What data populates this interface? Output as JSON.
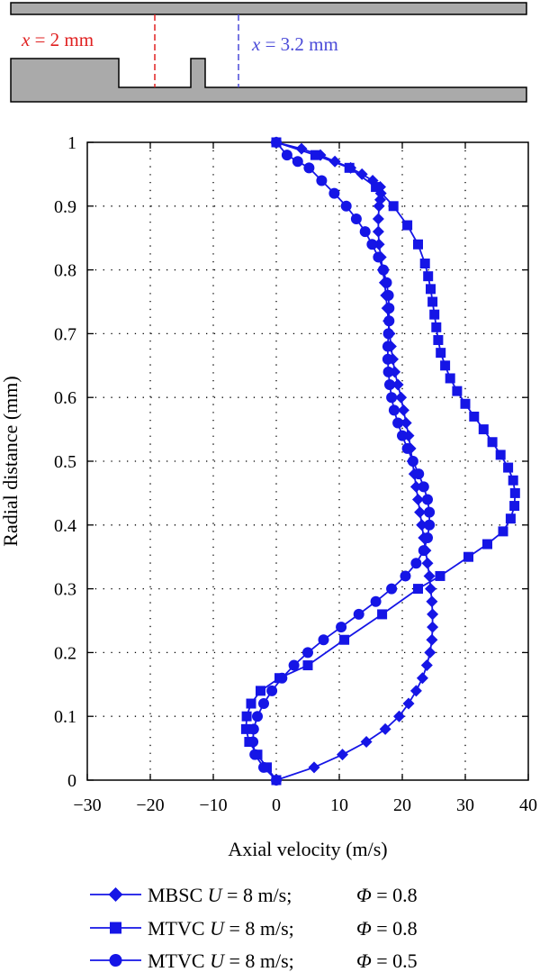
{
  "schematic": {
    "annotations": [
      {
        "var": "x",
        "text": " = 2 mm",
        "color": "#e02020"
      },
      {
        "var": "x",
        "text": " = 3.2 mm",
        "color": "#4a4ad8"
      }
    ]
  },
  "chart_data": {
    "type": "line",
    "xlabel": "Axial velocity (m/s)",
    "ylabel": "Radial distance (mm)",
    "xlim": [
      -30,
      40
    ],
    "ylim": [
      0,
      1
    ],
    "xticks": [
      "−30",
      "−20",
      "−10",
      "0",
      "10",
      "20",
      "30",
      "40"
    ],
    "yticks": [
      "0",
      "0.1",
      "0.2",
      "0.3",
      "0.4",
      "0.5",
      "0.6",
      "0.7",
      "0.8",
      "0.9",
      "1"
    ],
    "grid": true,
    "color": "#1515e6",
    "series": [
      {
        "name": "MBSC U = 8 m/s;    Φ = 0.8",
        "legend": {
          "name": "MBSC",
          "u_sym": "U",
          "u_val": " = 8 m/s;",
          "phi_sym": "Φ",
          "phi_val": " = 0.8"
        },
        "marker": "diamond",
        "x": [
          0,
          6.0,
          10.5,
          14.3,
          17.3,
          19.5,
          21.0,
          22.2,
          23.2,
          23.9,
          24.4,
          24.7,
          24.8,
          24.8,
          24.7,
          24.5,
          24.3,
          24.0,
          23.7,
          23.4,
          23.1,
          22.8,
          22.5,
          22.2,
          21.9,
          21.6,
          21.3,
          21.0,
          20.6,
          20.2,
          19.8,
          19.3,
          18.8,
          18.5,
          18.2,
          18.0,
          17.8,
          17.6,
          17.4,
          17.2,
          16.9,
          16.6,
          16.3,
          16.2,
          16.2,
          16.3,
          16.5,
          16.6,
          16.5,
          15.3,
          13.6,
          11.8,
          9.3,
          7.0,
          4.0,
          0
        ],
        "y": [
          0,
          0.02,
          0.04,
          0.06,
          0.08,
          0.1,
          0.12,
          0.14,
          0.16,
          0.18,
          0.2,
          0.22,
          0.24,
          0.26,
          0.28,
          0.3,
          0.32,
          0.34,
          0.36,
          0.38,
          0.4,
          0.42,
          0.44,
          0.46,
          0.48,
          0.5,
          0.52,
          0.54,
          0.56,
          0.58,
          0.6,
          0.62,
          0.64,
          0.66,
          0.68,
          0.7,
          0.72,
          0.74,
          0.76,
          0.78,
          0.8,
          0.82,
          0.84,
          0.86,
          0.88,
          0.9,
          0.91,
          0.92,
          0.93,
          0.94,
          0.95,
          0.96,
          0.97,
          0.98,
          0.99,
          1.0
        ]
      },
      {
        "name": "MTVC U = 8 m/s;    Φ = 0.8",
        "legend": {
          "name": "MTVC",
          "u_sym": "U",
          "u_val": " = 8 m/s;",
          "phi_sym": "Φ",
          "phi_val": " = 0.8"
        },
        "marker": "square",
        "x": [
          0,
          -1.5,
          -3.0,
          -4.3,
          -4.8,
          -4.7,
          -4.0,
          -2.5,
          0.5,
          5.0,
          10.8,
          16.8,
          22.5,
          26.0,
          30.5,
          33.5,
          36.0,
          37.2,
          37.8,
          37.9,
          37.6,
          36.8,
          35.6,
          34.3,
          32.9,
          31.4,
          30.0,
          28.7,
          27.6,
          26.8,
          26.1,
          25.7,
          25.4,
          25.1,
          24.8,
          24.5,
          24.1,
          23.6,
          22.5,
          20.8,
          18.6,
          15.8,
          11.6,
          6.2,
          0
        ],
        "y": [
          0,
          0.02,
          0.04,
          0.06,
          0.08,
          0.1,
          0.12,
          0.14,
          0.16,
          0.18,
          0.22,
          0.26,
          0.3,
          0.32,
          0.35,
          0.37,
          0.39,
          0.41,
          0.43,
          0.45,
          0.47,
          0.49,
          0.51,
          0.53,
          0.55,
          0.57,
          0.59,
          0.61,
          0.63,
          0.65,
          0.67,
          0.69,
          0.71,
          0.73,
          0.75,
          0.77,
          0.79,
          0.81,
          0.84,
          0.87,
          0.9,
          0.93,
          0.96,
          0.98,
          1.0
        ]
      },
      {
        "name": "MTVC U = 8 m/s;    Φ = 0.5",
        "legend": {
          "name": "MTVC",
          "u_sym": "U",
          "u_val": " = 8 m/s;",
          "phi_sym": "Φ",
          "phi_val": " = 0.5"
        },
        "marker": "circle",
        "x": [
          0,
          -2.0,
          -3.4,
          -3.7,
          -3.6,
          -3.0,
          -2.0,
          -0.7,
          0.9,
          2.8,
          5.0,
          7.5,
          10.3,
          13.1,
          15.8,
          18.3,
          20.5,
          22.2,
          23.4,
          24.0,
          24.3,
          24.3,
          24.0,
          23.4,
          22.6,
          21.7,
          20.8,
          20.0,
          19.3,
          18.7,
          18.3,
          18.0,
          17.8,
          17.7,
          17.7,
          17.8,
          17.9,
          17.9,
          17.8,
          17.5,
          17.0,
          16.2,
          15.2,
          14.1,
          12.7,
          11.1,
          9.2,
          7.2,
          5.2,
          3.4,
          1.7,
          0
        ],
        "y": [
          0,
          0.02,
          0.04,
          0.06,
          0.08,
          0.1,
          0.12,
          0.14,
          0.16,
          0.18,
          0.2,
          0.22,
          0.24,
          0.26,
          0.28,
          0.3,
          0.32,
          0.34,
          0.36,
          0.38,
          0.4,
          0.42,
          0.44,
          0.46,
          0.48,
          0.5,
          0.52,
          0.54,
          0.56,
          0.58,
          0.6,
          0.62,
          0.64,
          0.66,
          0.68,
          0.7,
          0.72,
          0.74,
          0.76,
          0.78,
          0.8,
          0.82,
          0.84,
          0.86,
          0.88,
          0.9,
          0.92,
          0.94,
          0.96,
          0.97,
          0.98,
          1.0
        ]
      }
    ]
  }
}
